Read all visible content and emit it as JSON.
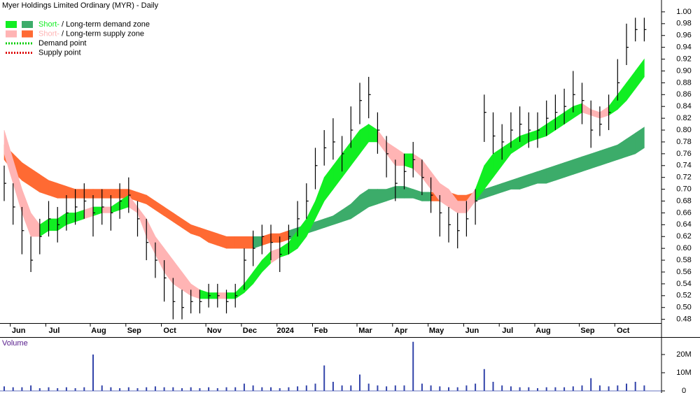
{
  "chart_data": [
    {
      "type": "ohlc",
      "title": "Myer Holdings Limited Ordinary (MYR) - Daily",
      "categories": [
        null,
        "Jun",
        null,
        null,
        null,
        "Jul",
        null,
        null,
        null,
        null,
        "Aug",
        null,
        null,
        null,
        "Sep",
        null,
        null,
        null,
        "Oct",
        null,
        null,
        null,
        null,
        "Nov",
        null,
        null,
        null,
        "Dec",
        null,
        null,
        null,
        "2024",
        null,
        null,
        null,
        "Feb",
        null,
        null,
        null,
        null,
        "Mar",
        null,
        null,
        null,
        "Apr",
        null,
        null,
        null,
        "May",
        null,
        null,
        null,
        "Jun",
        null,
        null,
        null,
        "Jul",
        null,
        null,
        null,
        "Aug",
        null,
        null,
        null,
        null,
        "Sep",
        null,
        null,
        null,
        "Oct",
        null,
        null,
        null
      ],
      "high": [
        0.74,
        0.71,
        0.67,
        0.62,
        0.65,
        0.68,
        0.67,
        0.69,
        0.7,
        0.71,
        0.69,
        0.7,
        0.69,
        0.71,
        0.72,
        0.68,
        0.65,
        0.61,
        0.58,
        0.55,
        0.53,
        0.53,
        0.53,
        0.54,
        0.54,
        0.53,
        0.54,
        0.6,
        0.63,
        0.64,
        0.64,
        0.62,
        0.64,
        0.68,
        0.71,
        0.77,
        0.8,
        0.82,
        0.79,
        0.84,
        0.88,
        0.89,
        0.83,
        0.79,
        0.75,
        0.76,
        0.78,
        0.75,
        0.72,
        0.69,
        0.67,
        0.66,
        0.68,
        0.7,
        0.86,
        0.83,
        0.81,
        0.83,
        0.84,
        0.83,
        0.83,
        0.85,
        0.86,
        0.87,
        0.9,
        0.88,
        0.85,
        0.84,
        0.86,
        0.92,
        0.98,
        0.99,
        0.99
      ],
      "low": [
        0.68,
        0.64,
        0.59,
        0.56,
        0.59,
        0.62,
        0.61,
        0.63,
        0.64,
        0.65,
        0.62,
        0.64,
        0.63,
        0.65,
        0.66,
        0.62,
        0.58,
        0.55,
        0.51,
        0.48,
        0.48,
        0.49,
        0.49,
        0.5,
        0.5,
        0.49,
        0.5,
        0.53,
        0.57,
        0.59,
        0.58,
        0.56,
        0.59,
        0.62,
        0.65,
        0.7,
        0.74,
        0.75,
        0.73,
        0.77,
        0.81,
        0.82,
        0.76,
        0.72,
        0.68,
        0.7,
        0.72,
        0.69,
        0.66,
        0.62,
        0.61,
        0.6,
        0.62,
        0.64,
        0.78,
        0.76,
        0.75,
        0.77,
        0.78,
        0.77,
        0.77,
        0.79,
        0.8,
        0.81,
        0.83,
        0.81,
        0.77,
        0.79,
        0.8,
        0.85,
        0.91,
        0.95,
        0.95
      ],
      "close": [
        0.71,
        0.67,
        0.63,
        0.58,
        0.62,
        0.65,
        0.64,
        0.66,
        0.67,
        0.68,
        0.66,
        0.67,
        0.66,
        0.68,
        0.69,
        0.65,
        0.61,
        0.58,
        0.55,
        0.51,
        0.5,
        0.51,
        0.51,
        0.52,
        0.52,
        0.51,
        0.52,
        0.58,
        0.6,
        0.62,
        0.61,
        0.59,
        0.62,
        0.65,
        0.68,
        0.74,
        0.77,
        0.78,
        0.76,
        0.8,
        0.85,
        0.86,
        0.8,
        0.76,
        0.71,
        0.73,
        0.75,
        0.72,
        0.69,
        0.66,
        0.64,
        0.63,
        0.65,
        0.68,
        0.83,
        0.79,
        0.78,
        0.8,
        0.81,
        0.8,
        0.8,
        0.82,
        0.83,
        0.84,
        0.86,
        0.85,
        0.8,
        0.81,
        0.83,
        0.88,
        0.94,
        0.97,
        0.97
      ],
      "color": "#000000",
      "zones": [
        {
          "upper": [
            0.8,
            0.75,
            0.7,
            0.66,
            0.64,
            0.65,
            0.65,
            0.66,
            0.66,
            0.665,
            0.67,
            0.67,
            0.67,
            0.68,
            0.69,
            0.67,
            0.65,
            0.62,
            0.6,
            0.58,
            0.56,
            0.54,
            0.53,
            0.525,
            0.525,
            0.525,
            0.525,
            0.54,
            0.56,
            0.58,
            0.595,
            0.6,
            0.61,
            0.63,
            0.65,
            0.68,
            0.72,
            0.74,
            0.76,
            0.78,
            0.8,
            0.81,
            0.8,
            0.78,
            0.77,
            0.76,
            0.76,
            0.75,
            0.73,
            0.71,
            0.7,
            0.68,
            0.68,
            0.7,
            0.74,
            0.76,
            0.77,
            0.78,
            0.79,
            0.795,
            0.8,
            0.81,
            0.82,
            0.83,
            0.84,
            0.845,
            0.835,
            0.83,
            0.84,
            0.86,
            0.88,
            0.9,
            0.92
          ],
          "lower": [
            0.76,
            0.71,
            0.66,
            0.62,
            0.62,
            0.63,
            0.63,
            0.64,
            0.645,
            0.65,
            0.655,
            0.66,
            0.66,
            0.665,
            0.67,
            0.66,
            0.62,
            0.59,
            0.56,
            0.54,
            0.53,
            0.52,
            0.515,
            0.515,
            0.515,
            0.515,
            0.515,
            0.525,
            0.54,
            0.56,
            0.575,
            0.585,
            0.59,
            0.6,
            0.62,
            0.65,
            0.68,
            0.7,
            0.72,
            0.74,
            0.76,
            0.78,
            0.78,
            0.76,
            0.74,
            0.74,
            0.735,
            0.72,
            0.7,
            0.68,
            0.67,
            0.66,
            0.66,
            0.68,
            0.7,
            0.72,
            0.74,
            0.76,
            0.77,
            0.78,
            0.785,
            0.79,
            0.8,
            0.81,
            0.82,
            0.83,
            0.825,
            0.82,
            0.825,
            0.835,
            0.85,
            0.87,
            0.89
          ],
          "demand_color": "#11ee22",
          "supply_color": "#ffb4b4"
        },
        {
          "upper": [
            0.775,
            0.76,
            0.745,
            0.735,
            0.725,
            0.715,
            0.71,
            0.705,
            0.7,
            0.7,
            0.7,
            0.7,
            0.7,
            0.7,
            0.7,
            0.695,
            0.69,
            0.68,
            0.67,
            0.66,
            0.65,
            0.64,
            0.635,
            0.63,
            0.625,
            0.62,
            0.62,
            0.62,
            0.62,
            0.62,
            0.625,
            0.625,
            0.63,
            0.635,
            0.64,
            0.645,
            0.65,
            0.655,
            0.665,
            0.675,
            0.69,
            0.7,
            0.7,
            0.7,
            0.705,
            0.705,
            0.7,
            0.695,
            0.695,
            0.695,
            0.695,
            0.69,
            0.69,
            0.695,
            0.7,
            0.705,
            0.71,
            0.715,
            0.72,
            0.725,
            0.73,
            0.735,
            0.74,
            0.745,
            0.75,
            0.755,
            0.76,
            0.765,
            0.77,
            0.775,
            0.785,
            0.795,
            0.805
          ],
          "lower": [
            0.75,
            0.73,
            0.715,
            0.705,
            0.695,
            0.69,
            0.685,
            0.685,
            0.685,
            0.685,
            0.685,
            0.685,
            0.685,
            0.685,
            0.685,
            0.68,
            0.675,
            0.665,
            0.655,
            0.645,
            0.635,
            0.625,
            0.62,
            0.61,
            0.605,
            0.6,
            0.6,
            0.6,
            0.6,
            0.605,
            0.61,
            0.61,
            0.615,
            0.62,
            0.625,
            0.63,
            0.635,
            0.64,
            0.645,
            0.65,
            0.66,
            0.67,
            0.675,
            0.68,
            0.685,
            0.685,
            0.685,
            0.68,
            0.68,
            0.68,
            0.68,
            0.675,
            0.675,
            0.68,
            0.685,
            0.69,
            0.695,
            0.7,
            0.7,
            0.705,
            0.71,
            0.71,
            0.715,
            0.72,
            0.725,
            0.73,
            0.735,
            0.74,
            0.745,
            0.75,
            0.755,
            0.76,
            0.77
          ],
          "demand_color": "#3cac6a",
          "supply_color": "#ff6a33"
        }
      ],
      "legend": [
        {
          "short": "Short-",
          "long": "/ Long-term demand zone",
          "kind": "demand"
        },
        {
          "short": "Short-",
          "long": "/ Long-term supply zone",
          "kind": "supply"
        },
        {
          "label": "Demand point",
          "color": "#00cc00"
        },
        {
          "label": "Supply point",
          "color": "#dd0000"
        }
      ],
      "ylim": [
        0.45,
        1.02
      ],
      "yticks": [
        0.48,
        {
          "value": 0.5,
          "label": "0.50"
        },
        0.52,
        0.54,
        0.56,
        0.58,
        {
          "value": 0.6,
          "label": "0.60"
        },
        0.62,
        0.64,
        0.66,
        0.68,
        {
          "value": 0.7,
          "label": "0.70"
        },
        0.72,
        0.74,
        0.76,
        0.78,
        {
          "value": 0.8,
          "label": "0.80"
        },
        0.82,
        0.84,
        0.86,
        0.88,
        {
          "value": 0.9,
          "label": "0.90"
        },
        0.92,
        0.94,
        0.96,
        0.98,
        {
          "value": 1,
          "label": "1.00"
        }
      ]
    },
    {
      "type": "bar",
      "title": "Volume",
      "values": [
        2.5,
        2,
        2,
        3,
        1.5,
        2,
        1.5,
        2,
        1.5,
        2,
        20,
        3,
        2,
        1.5,
        2,
        1.5,
        2,
        2.5,
        2,
        2,
        1.5,
        2,
        1.5,
        2,
        1.5,
        2,
        2,
        4,
        3,
        2,
        2,
        1.5,
        2,
        2.5,
        3,
        4,
        14,
        5,
        3,
        3,
        9,
        4,
        3,
        2.5,
        3,
        3,
        27,
        4,
        3,
        2.5,
        2,
        2,
        3,
        4,
        12,
        5,
        3,
        2.5,
        2,
        2,
        1.5,
        2,
        2,
        2,
        2.5,
        3,
        7,
        3,
        2.5,
        3,
        4,
        5,
        3
      ],
      "color": "#3344aa",
      "ylim": [
        0,
        29.6
      ],
      "yticks": [
        0,
        {
          "value": 10,
          "label": "10M"
        },
        {
          "value": 20,
          "label": "20M"
        }
      ]
    }
  ]
}
